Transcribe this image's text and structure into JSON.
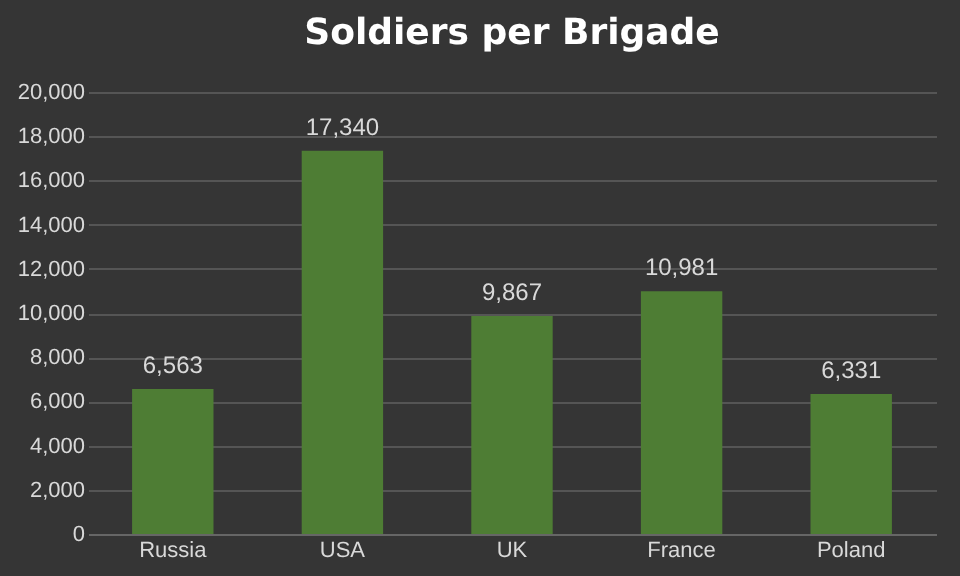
{
  "chart_data": {
    "type": "bar",
    "title": "Soldiers per Brigade",
    "categories": [
      "Russia",
      "USA",
      "UK",
      "France",
      "Poland"
    ],
    "values": [
      6563,
      17340,
      9867,
      10981,
      6331
    ],
    "value_labels": [
      "6,563",
      "17,340",
      "9,867",
      "10,981",
      "6,331"
    ],
    "color": "#4e7d34",
    "ylim": [
      0,
      20000
    ],
    "yticks": [
      0,
      {
        "value": 2000,
        "label": "2,000"
      },
      {
        "value": 4000,
        "label": "4,000"
      },
      {
        "value": 6000,
        "label": "6,000"
      },
      {
        "value": 8000,
        "label": "8,000"
      },
      {
        "value": 10000,
        "label": "10,000"
      },
      {
        "value": 12000,
        "label": "12,000"
      },
      {
        "value": 14000,
        "label": "14,000"
      },
      {
        "value": 16000,
        "label": "16,000"
      },
      {
        "value": 18000,
        "label": "18,000"
      },
      {
        "value": 20000,
        "label": "20,000"
      }
    ],
    "grid": "y"
  }
}
